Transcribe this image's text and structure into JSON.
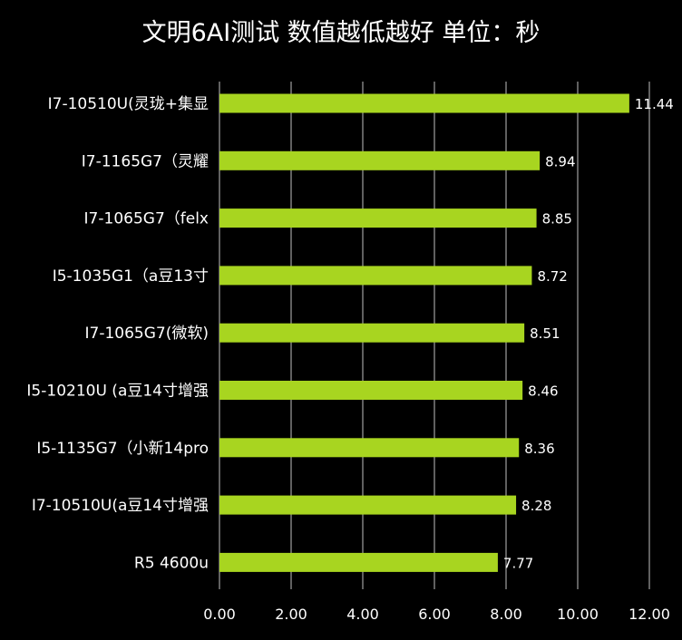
{
  "chart_data": {
    "type": "bar",
    "orientation": "horizontal",
    "title": "文明6AI测试 数值越低越好 单位：秒",
    "categories": [
      "I7-10510U(灵珑+集显",
      "I7-1165G7（灵耀",
      "I7-1065G7（felx",
      "I5-1035G1（a豆13寸",
      "I7-1065G7(微软)",
      "I5-10210U (a豆14寸增强",
      "I5-1135G7（小新14pro",
      "I7-10510U(a豆14寸增强",
      "R5 4600u"
    ],
    "values": [
      11.44,
      8.94,
      8.85,
      8.72,
      8.51,
      8.46,
      8.36,
      8.28,
      7.77
    ],
    "value_labels": [
      "11.44",
      "8.94",
      "8.85",
      "8.72",
      "8.51",
      "8.46",
      "8.36",
      "8.28",
      "7.77"
    ],
    "xlim": [
      0,
      12
    ],
    "x_ticks": [
      "0.00",
      "2.00",
      "4.00",
      "6.00",
      "8.00",
      "10.00",
      "12.00"
    ],
    "x_tick_values": [
      0,
      2,
      4,
      6,
      8,
      10,
      12
    ],
    "grid": "vertical",
    "legend": "none",
    "colors": {
      "background": "#000000",
      "bar": "#a8d520",
      "text": "#ffffff",
      "grid": "#bfbfbf"
    }
  }
}
